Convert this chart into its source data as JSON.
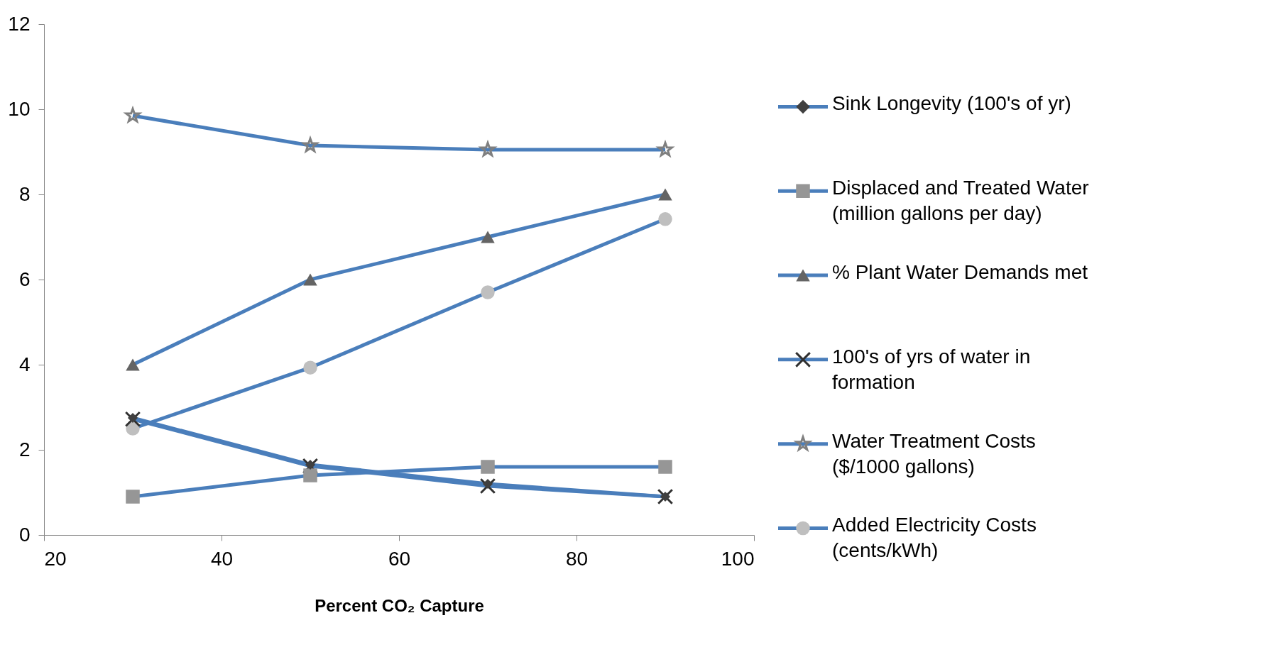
{
  "chart_data": {
    "type": "line",
    "xlabel": "Percent CO₂ Capture",
    "x": [
      30,
      50,
      70,
      90
    ],
    "xlim": [
      20,
      100
    ],
    "xticks": [
      20,
      40,
      60,
      80,
      100
    ],
    "ylim": [
      0,
      12
    ],
    "yticks": [
      0,
      2,
      4,
      6,
      8,
      10,
      12
    ],
    "legend": "right",
    "series": [
      {
        "name": "Sink Longevity (100's of yr)",
        "color": "#4a7ebb",
        "marker": "diamond",
        "values": [
          2.75,
          1.65,
          1.2,
          0.9
        ]
      },
      {
        "name": "Displaced and Treated Water (million gallons per day)",
        "color": "#4a7ebb",
        "marker": "square",
        "values": [
          0.9,
          1.4,
          1.6,
          1.6
        ]
      },
      {
        "name": "% Plant Water Demands met",
        "color": "#4a7ebb",
        "marker": "triangle",
        "values": [
          4,
          6,
          7,
          8
        ]
      },
      {
        "name": "100's of yrs of water in formation",
        "color": "#4a7ebb",
        "marker": "cross",
        "values": [
          2.72,
          1.62,
          1.15,
          0.9
        ]
      },
      {
        "name": "Water Treatment Costs ($/1000 gallons)",
        "color": "#4a7ebb",
        "marker": "star",
        "values": [
          9.85,
          9.15,
          9.05,
          9.05
        ]
      },
      {
        "name": "Added Electricity Costs (cents/kWh)",
        "color": "#4a7ebb",
        "marker": "circle",
        "values": [
          2.5,
          3.93,
          5.7,
          7.42
        ]
      }
    ]
  }
}
